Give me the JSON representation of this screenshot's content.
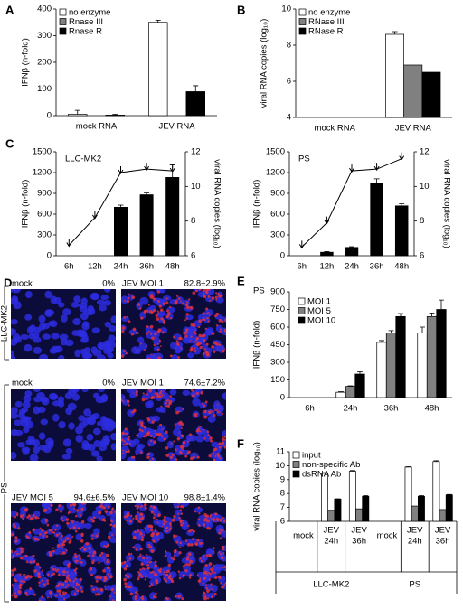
{
  "chart_data": [
    {
      "type": "bar",
      "panel": "A",
      "ylabel": "IFNβ (n-fold)",
      "categories": [
        "mock RNA",
        "JEV RNA"
      ],
      "series": [
        {
          "name": "no enzyme",
          "color": "#ffffff",
          "values": [
            5,
            350
          ],
          "errors": [
            15,
            8
          ]
        },
        {
          "name": "Rnase III",
          "color": "#808080",
          "values": [
            0,
            0
          ]
        },
        {
          "name": "Rnase R",
          "color": "#000000",
          "values": [
            2,
            90
          ],
          "errors": [
            3,
            22
          ]
        }
      ],
      "ylim": [
        0,
        400
      ],
      "yticks": [
        0,
        100,
        200,
        300,
        400
      ],
      "legend": "upper left"
    },
    {
      "type": "bar",
      "panel": "B",
      "ylabel": "viral RNA copies (log₁₀)",
      "categories": [
        "mock RNA",
        "JEV RNA"
      ],
      "series": [
        {
          "name": "no enzyme",
          "color": "#ffffff",
          "values": [
            null,
            8.6
          ],
          "errors": [
            null,
            0.15
          ]
        },
        {
          "name": "RNase III",
          "color": "#808080",
          "values": [
            null,
            6.9
          ]
        },
        {
          "name": "RNase R",
          "color": "#000000",
          "values": [
            null,
            6.5
          ]
        }
      ],
      "ylim": [
        4,
        10
      ],
      "yticks": [
        4,
        6,
        8,
        10
      ],
      "legend": "upper left"
    },
    {
      "type": "combo",
      "panel": "C",
      "title": "LLC-MK2",
      "ylabel": "IFNβ (n-fold)",
      "y2label": "viral RNA copies (log₁₀)",
      "categories": [
        "6h",
        "12h",
        "24h",
        "36h",
        "48h"
      ],
      "series": [
        {
          "color": "#000000",
          "values": [
            0,
            0,
            700,
            880,
            1130
          ],
          "errors": [
            null,
            null,
            30,
            25,
            180
          ]
        },
        {
          "color": "#000000",
          "axis": "y2",
          "values": [
            6.6,
            8.2,
            10.8,
            11.0,
            10.9
          ]
        }
      ],
      "ylim": [
        0,
        1500
      ],
      "yticks": [
        0,
        300,
        600,
        900,
        1200,
        1500
      ],
      "y2lim": [
        6,
        12
      ],
      "y2ticks": [
        6,
        8,
        10,
        12
      ]
    },
    {
      "type": "combo",
      "title": "PS",
      "ylabel": "IFNβ (n-fold)",
      "y2label": "viral RNA copies (log₁₀)",
      "categories": [
        "6h",
        "12h",
        "24h",
        "36h",
        "48h"
      ],
      "series": [
        {
          "color": "#000000",
          "values": [
            0,
            50,
            120,
            1040,
            720
          ],
          "errors": [
            null,
            10,
            10,
            70,
            30
          ]
        },
        {
          "color": "#000000",
          "axis": "y2",
          "values": [
            6.5,
            7.9,
            10.9,
            11.0,
            11.6
          ]
        }
      ],
      "ylim": [
        0,
        1500
      ],
      "yticks": [
        0,
        300,
        600,
        900,
        1200,
        1500
      ],
      "y2lim": [
        6,
        12
      ],
      "y2ticks": [
        6,
        8,
        10,
        12
      ]
    },
    {
      "type": "bar",
      "panel": "E",
      "title": "PS",
      "ylabel": "IFNβ (n-fold)",
      "categories": [
        "6h",
        "24h",
        "36h",
        "48h"
      ],
      "series": [
        {
          "name": "MOI 1",
          "color": "#ffffff",
          "values": [
            0,
            45,
            470,
            550
          ],
          "errors": [
            null,
            5,
            15,
            50
          ]
        },
        {
          "name": "MOI 5",
          "color": "#808080",
          "values": [
            0,
            95,
            550,
            690
          ],
          "errors": [
            null,
            5,
            20,
            30
          ]
        },
        {
          "name": "MOI 10",
          "color": "#000000",
          "values": [
            0,
            200,
            690,
            750
          ],
          "errors": [
            null,
            20,
            25,
            80
          ]
        }
      ],
      "ylim": [
        0,
        900
      ],
      "yticks": [
        0,
        150,
        300,
        450,
        600,
        750,
        900
      ],
      "legend": "upper left"
    },
    {
      "type": "bar",
      "panel": "F",
      "ylabel": "viral RNA copies (log₁₀)",
      "categories": [
        [
          "mock"
        ],
        [
          "JEV",
          "24h"
        ],
        [
          "JEV",
          "36h"
        ],
        [
          "mock"
        ],
        [
          "JEV",
          "24h"
        ],
        [
          "JEV",
          "36h"
        ]
      ],
      "groups": [
        "LLC-MK2",
        "PS"
      ],
      "series": [
        {
          "name": "input",
          "color": "#ffffff",
          "values": [
            null,
            9.45,
            9.6,
            null,
            9.9,
            10.3
          ],
          "errors": [
            null,
            0.05,
            0.05,
            null,
            0.03,
            0.06
          ]
        },
        {
          "name": "non-specific Ab",
          "color": "#808080",
          "values": [
            null,
            6.8,
            6.9,
            null,
            7.1,
            6.85
          ]
        },
        {
          "name": "dsRNA Ab",
          "color": "#000000",
          "values": [
            null,
            7.6,
            7.8,
            null,
            7.8,
            7.9
          ],
          "errors": [
            null,
            0.02,
            0.05,
            null,
            0.05,
            0.03
          ]
        }
      ],
      "ylim": [
        6,
        11
      ],
      "yticks": [
        6,
        7,
        8,
        9,
        10,
        11
      ],
      "legend": "upper left"
    }
  ],
  "micrographs": {
    "panel": "D",
    "groups": [
      "LLC-MK2",
      "PS"
    ],
    "images": [
      {
        "label": "mock",
        "percent": "0%"
      },
      {
        "label": "JEV MOI 1",
        "percent": "82.8±2.9%"
      },
      {
        "label": "mock",
        "percent": "0%"
      },
      {
        "label": "JEV MOI 1",
        "percent": "74.6±7.2%"
      },
      {
        "label": "JEV MOI 5",
        "percent": "94.6±6.5%"
      },
      {
        "label": "JEV MOI 10",
        "percent": "98.8±1.4%"
      }
    ]
  }
}
